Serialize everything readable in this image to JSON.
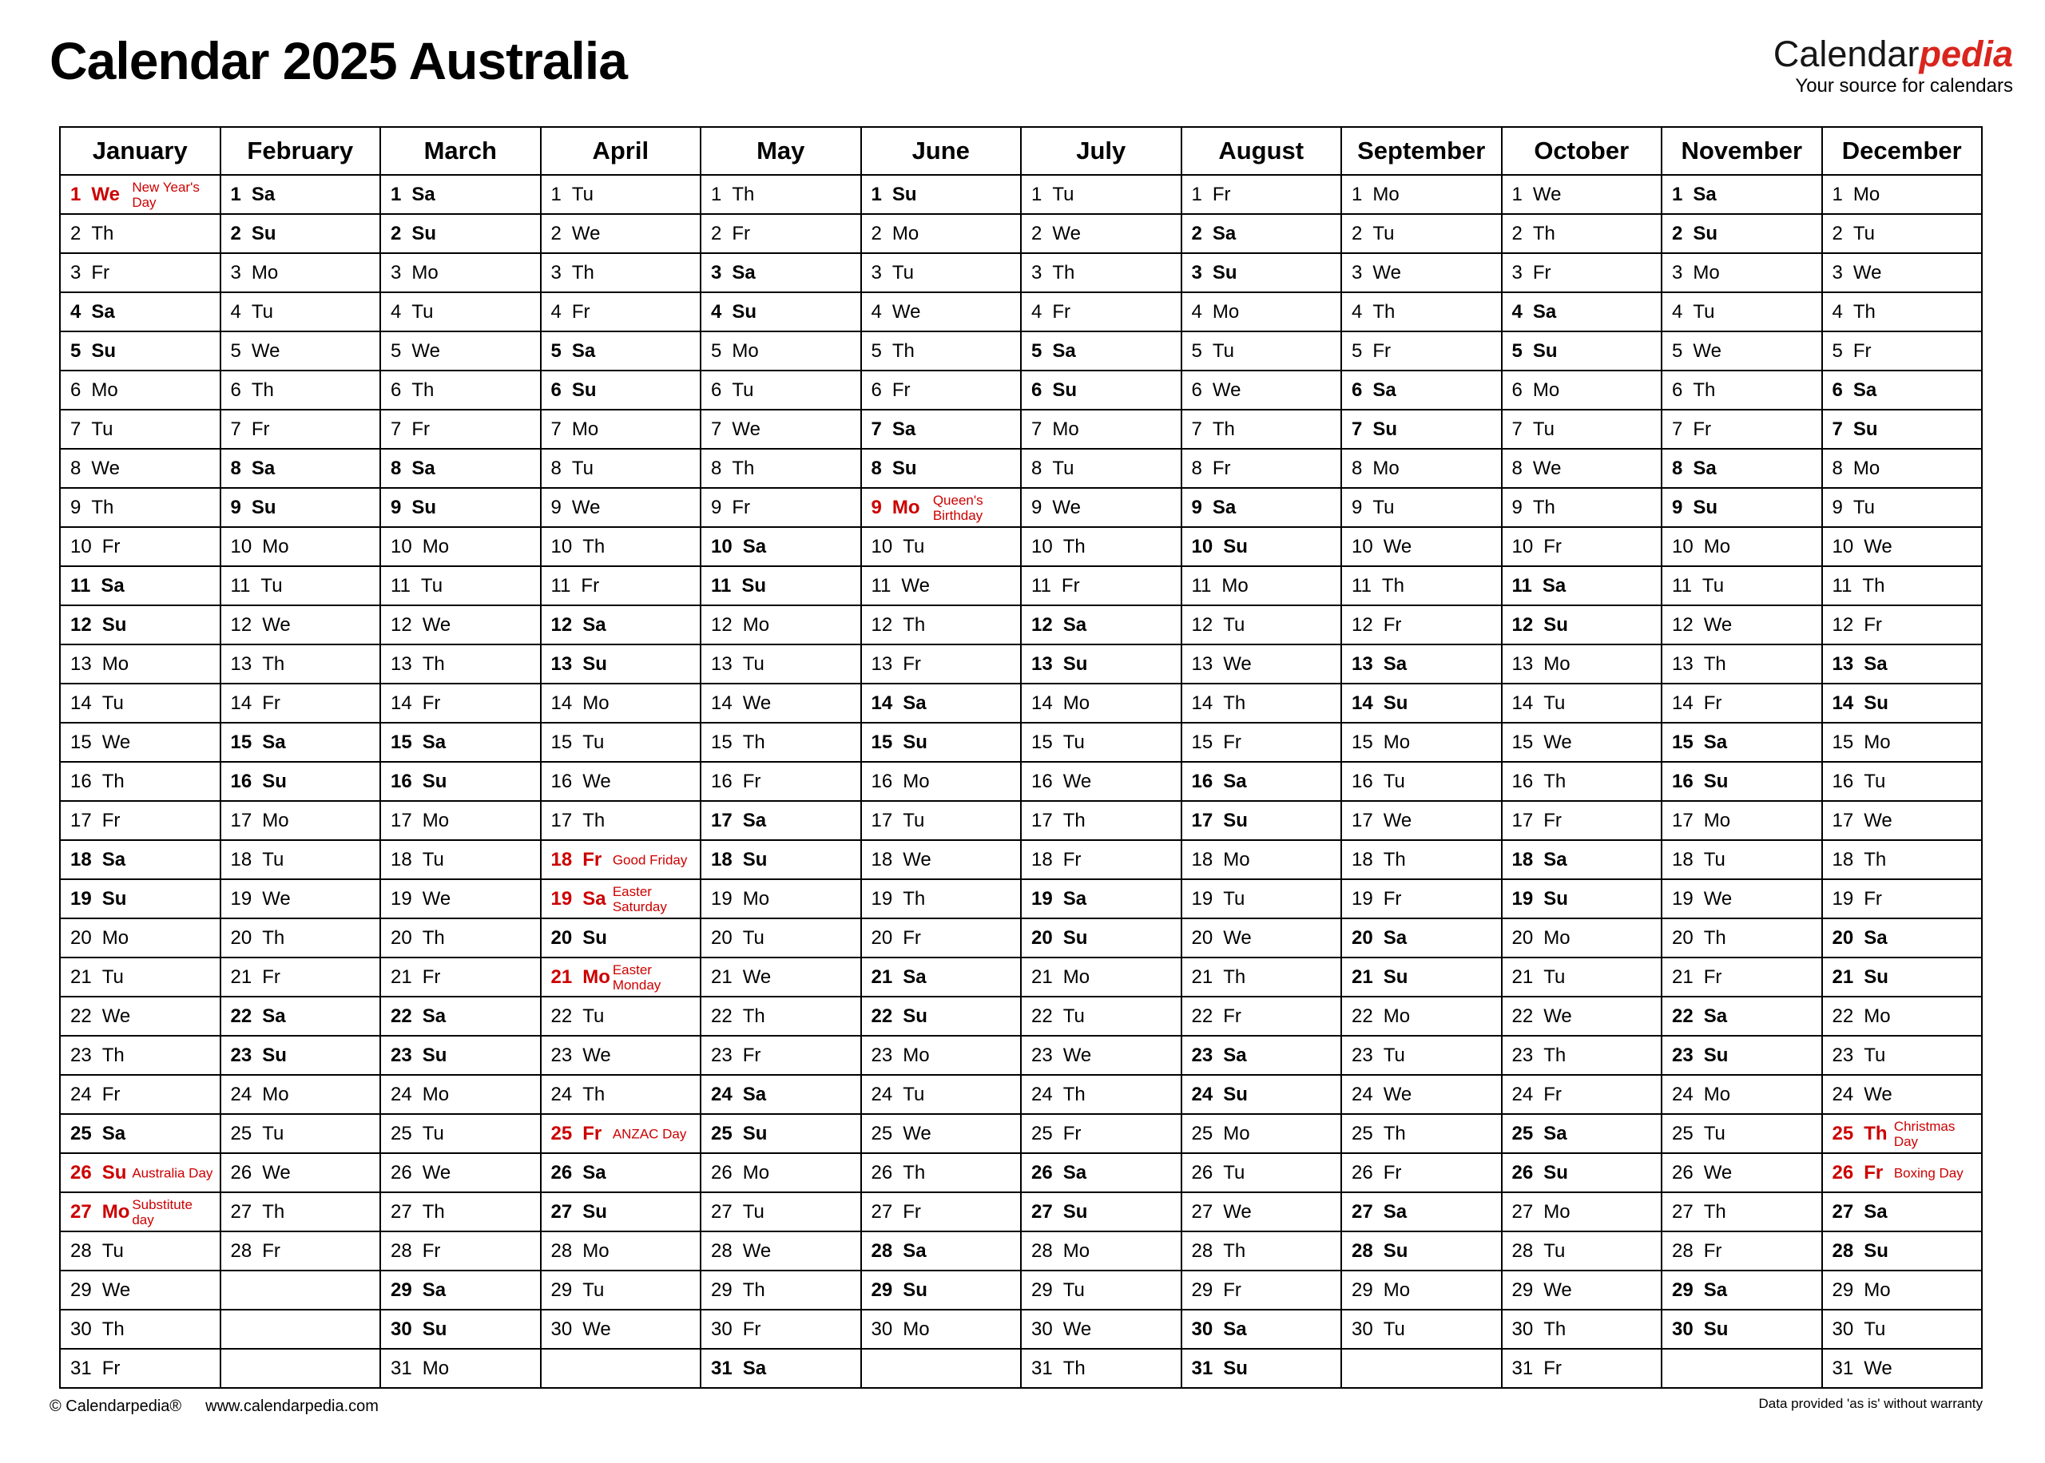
{
  "title": "Calendar 2025 Australia",
  "logo": {
    "part1": "Calendar",
    "part2": "pedia",
    "tagline": "Your source for calendars"
  },
  "footer": {
    "copyright": "© Calendarpedia®",
    "website": "www.calendarpedia.com",
    "disclaimer": "Data provided 'as is' without warranty"
  },
  "colors": {
    "saturday_bg": "#FFFFC8",
    "sunday_bg": "#FACA90",
    "holiday_bg": "#F9D4D4",
    "holiday_text": "#CC0000",
    "empty_bg": "#E4E4E4",
    "border": "#000000",
    "logo_red": "#D9251D"
  },
  "rows": 31,
  "months": [
    {
      "name": "January",
      "weekdays": [
        "We",
        "Th",
        "Fr",
        "Sa",
        "Su",
        "Mo",
        "Tu",
        "We",
        "Th",
        "Fr",
        "Sa",
        "Su",
        "Mo",
        "Tu",
        "We",
        "Th",
        "Fr",
        "Sa",
        "Su",
        "Mo",
        "Tu",
        "We",
        "Th",
        "Fr",
        "Sa",
        "Su",
        "Mo",
        "Tu",
        "We",
        "Th",
        "Fr"
      ],
      "holidays": {
        "1": "New Year's\nDay",
        "26": "Australia Day",
        "27": "Substitute\nday"
      }
    },
    {
      "name": "February",
      "weekdays": [
        "Sa",
        "Su",
        "Mo",
        "Tu",
        "We",
        "Th",
        "Fr",
        "Sa",
        "Su",
        "Mo",
        "Tu",
        "We",
        "Th",
        "Fr",
        "Sa",
        "Su",
        "Mo",
        "Tu",
        "We",
        "Th",
        "Fr",
        "Sa",
        "Su",
        "Mo",
        "Tu",
        "We",
        "Th",
        "Fr"
      ],
      "holidays": {}
    },
    {
      "name": "March",
      "weekdays": [
        "Sa",
        "Su",
        "Mo",
        "Tu",
        "We",
        "Th",
        "Fr",
        "Sa",
        "Su",
        "Mo",
        "Tu",
        "We",
        "Th",
        "Fr",
        "Sa",
        "Su",
        "Mo",
        "Tu",
        "We",
        "Th",
        "Fr",
        "Sa",
        "Su",
        "Mo",
        "Tu",
        "We",
        "Th",
        "Fr",
        "Sa",
        "Su",
        "Mo"
      ],
      "holidays": {}
    },
    {
      "name": "April",
      "weekdays": [
        "Tu",
        "We",
        "Th",
        "Fr",
        "Sa",
        "Su",
        "Mo",
        "Tu",
        "We",
        "Th",
        "Fr",
        "Sa",
        "Su",
        "Mo",
        "Tu",
        "We",
        "Th",
        "Fr",
        "Sa",
        "Su",
        "Mo",
        "Tu",
        "We",
        "Th",
        "Fr",
        "Sa",
        "Su",
        "Mo",
        "Tu",
        "We"
      ],
      "holidays": {
        "18": "Good Friday",
        "19": "Easter\nSaturday",
        "21": "Easter\nMonday",
        "25": "ANZAC Day"
      }
    },
    {
      "name": "May",
      "weekdays": [
        "Th",
        "Fr",
        "Sa",
        "Su",
        "Mo",
        "Tu",
        "We",
        "Th",
        "Fr",
        "Sa",
        "Su",
        "Mo",
        "Tu",
        "We",
        "Th",
        "Fr",
        "Sa",
        "Su",
        "Mo",
        "Tu",
        "We",
        "Th",
        "Fr",
        "Sa",
        "Su",
        "Mo",
        "Tu",
        "We",
        "Th",
        "Fr",
        "Sa"
      ],
      "holidays": {}
    },
    {
      "name": "June",
      "weekdays": [
        "Su",
        "Mo",
        "Tu",
        "We",
        "Th",
        "Fr",
        "Sa",
        "Su",
        "Mo",
        "Tu",
        "We",
        "Th",
        "Fr",
        "Sa",
        "Su",
        "Mo",
        "Tu",
        "We",
        "Th",
        "Fr",
        "Sa",
        "Su",
        "Mo",
        "Tu",
        "We",
        "Th",
        "Fr",
        "Sa",
        "Su",
        "Mo"
      ],
      "holidays": {
        "9": "Queen's\nBirthday"
      }
    },
    {
      "name": "July",
      "weekdays": [
        "Tu",
        "We",
        "Th",
        "Fr",
        "Sa",
        "Su",
        "Mo",
        "Tu",
        "We",
        "Th",
        "Fr",
        "Sa",
        "Su",
        "Mo",
        "Tu",
        "We",
        "Th",
        "Fr",
        "Sa",
        "Su",
        "Mo",
        "Tu",
        "We",
        "Th",
        "Fr",
        "Sa",
        "Su",
        "Mo",
        "Tu",
        "We",
        "Th"
      ],
      "holidays": {}
    },
    {
      "name": "August",
      "weekdays": [
        "Fr",
        "Sa",
        "Su",
        "Mo",
        "Tu",
        "We",
        "Th",
        "Fr",
        "Sa",
        "Su",
        "Mo",
        "Tu",
        "We",
        "Th",
        "Fr",
        "Sa",
        "Su",
        "Mo",
        "Tu",
        "We",
        "Th",
        "Fr",
        "Sa",
        "Su",
        "Mo",
        "Tu",
        "We",
        "Th",
        "Fr",
        "Sa",
        "Su"
      ],
      "holidays": {}
    },
    {
      "name": "September",
      "weekdays": [
        "Mo",
        "Tu",
        "We",
        "Th",
        "Fr",
        "Sa",
        "Su",
        "Mo",
        "Tu",
        "We",
        "Th",
        "Fr",
        "Sa",
        "Su",
        "Mo",
        "Tu",
        "We",
        "Th",
        "Fr",
        "Sa",
        "Su",
        "Mo",
        "Tu",
        "We",
        "Th",
        "Fr",
        "Sa",
        "Su",
        "Mo",
        "Tu"
      ],
      "holidays": {}
    },
    {
      "name": "October",
      "weekdays": [
        "We",
        "Th",
        "Fr",
        "Sa",
        "Su",
        "Mo",
        "Tu",
        "We",
        "Th",
        "Fr",
        "Sa",
        "Su",
        "Mo",
        "Tu",
        "We",
        "Th",
        "Fr",
        "Sa",
        "Su",
        "Mo",
        "Tu",
        "We",
        "Th",
        "Fr",
        "Sa",
        "Su",
        "Mo",
        "Tu",
        "We",
        "Th",
        "Fr"
      ],
      "holidays": {}
    },
    {
      "name": "November",
      "weekdays": [
        "Sa",
        "Su",
        "Mo",
        "Tu",
        "We",
        "Th",
        "Fr",
        "Sa",
        "Su",
        "Mo",
        "Tu",
        "We",
        "Th",
        "Fr",
        "Sa",
        "Su",
        "Mo",
        "Tu",
        "We",
        "Th",
        "Fr",
        "Sa",
        "Su",
        "Mo",
        "Tu",
        "We",
        "Th",
        "Fr",
        "Sa",
        "Su"
      ],
      "holidays": {}
    },
    {
      "name": "December",
      "weekdays": [
        "Mo",
        "Tu",
        "We",
        "Th",
        "Fr",
        "Sa",
        "Su",
        "Mo",
        "Tu",
        "We",
        "Th",
        "Fr",
        "Sa",
        "Su",
        "Mo",
        "Tu",
        "We",
        "Th",
        "Fr",
        "Sa",
        "Su",
        "Mo",
        "Tu",
        "We",
        "Th",
        "Fr",
        "Sa",
        "Su",
        "Mo",
        "Tu",
        "We"
      ],
      "holidays": {
        "25": "Christmas\nDay",
        "26": "Boxing Day"
      }
    }
  ]
}
